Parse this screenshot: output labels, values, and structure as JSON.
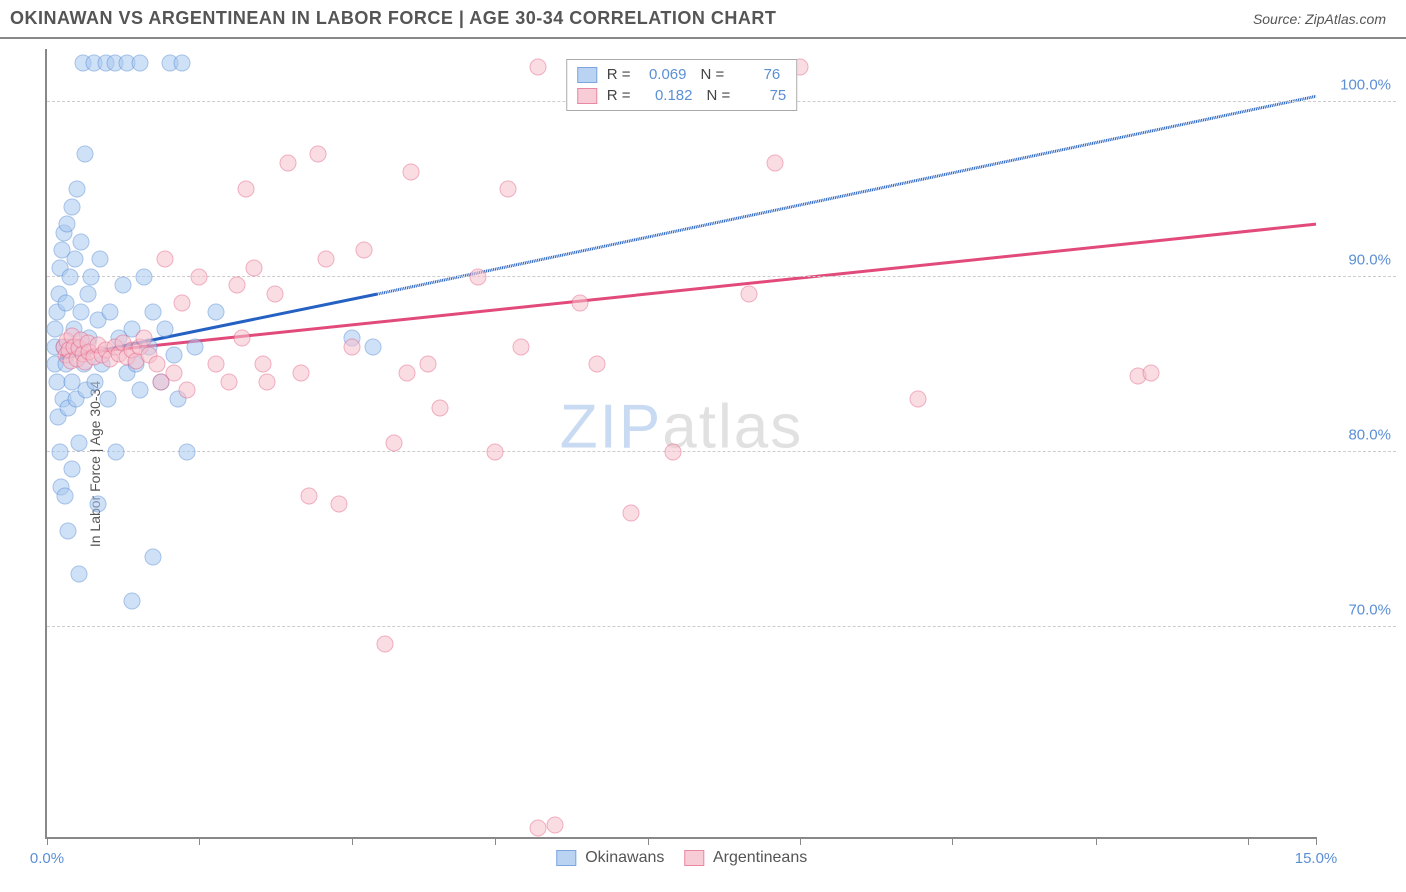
{
  "header": {
    "title": "OKINAWAN VS ARGENTINEAN IN LABOR FORCE | AGE 30-34 CORRELATION CHART",
    "source": "Source: ZipAtlas.com"
  },
  "chart": {
    "type": "scatter",
    "ylabel": "In Labor Force | Age 30-34",
    "watermark": "ZIPatlas",
    "xlim": [
      0,
      15
    ],
    "ylim": [
      58,
      103
    ],
    "y_ticks": [
      70,
      80,
      90,
      100
    ],
    "y_tick_labels": [
      "70.0%",
      "80.0%",
      "90.0%",
      "100.0%"
    ],
    "x_ticks": [
      0,
      1.8,
      3.6,
      5.3,
      7.1,
      8.9,
      10.7,
      12.4,
      14.2,
      15.0
    ],
    "x_tick_labels": {
      "first": "0.0%",
      "last": "15.0%"
    },
    "background_color": "#ffffff",
    "grid_color": "#cccccc",
    "axis_color": "#888888",
    "label_color": "#5b8fd6",
    "series": [
      {
        "name": "Okinawans",
        "marker_fill": "#a9c9f0",
        "marker_stroke": "#5b8fd6",
        "line_color": "#2561c2",
        "R": "0.069",
        "N": "76",
        "trend_solid": {
          "x1": 0.15,
          "y1": 85.3,
          "x2": 3.9,
          "y2": 89.0
        },
        "trend_dashed": {
          "x1": 3.9,
          "y1": 89.0,
          "x2": 15.0,
          "y2": 100.3
        },
        "points": [
          [
            0.1,
            86
          ],
          [
            0.1,
            85
          ],
          [
            0.1,
            87
          ],
          [
            0.12,
            84
          ],
          [
            0.12,
            88
          ],
          [
            0.13,
            82
          ],
          [
            0.14,
            89
          ],
          [
            0.15,
            80
          ],
          [
            0.15,
            90.5
          ],
          [
            0.16,
            78
          ],
          [
            0.18,
            91.5
          ],
          [
            0.19,
            83
          ],
          [
            0.2,
            86
          ],
          [
            0.2,
            92.5
          ],
          [
            0.21,
            77.5
          ],
          [
            0.22,
            85
          ],
          [
            0.22,
            88.5
          ],
          [
            0.24,
            93
          ],
          [
            0.25,
            82.5
          ],
          [
            0.25,
            75.5
          ],
          [
            0.27,
            86
          ],
          [
            0.27,
            90
          ],
          [
            0.29,
            84
          ],
          [
            0.3,
            94
          ],
          [
            0.3,
            79
          ],
          [
            0.32,
            87
          ],
          [
            0.33,
            91
          ],
          [
            0.34,
            83
          ],
          [
            0.35,
            95
          ],
          [
            0.36,
            86
          ],
          [
            0.38,
            80.5
          ],
          [
            0.38,
            73
          ],
          [
            0.4,
            88
          ],
          [
            0.4,
            92
          ],
          [
            0.42,
            102.2
          ],
          [
            0.44,
            85
          ],
          [
            0.45,
            97
          ],
          [
            0.46,
            83.5
          ],
          [
            0.48,
            89
          ],
          [
            0.5,
            86.5
          ],
          [
            0.52,
            90
          ],
          [
            0.55,
            102.2
          ],
          [
            0.57,
            84
          ],
          [
            0.6,
            87.5
          ],
          [
            0.6,
            77
          ],
          [
            0.63,
            91
          ],
          [
            0.65,
            85
          ],
          [
            0.7,
            102.2
          ],
          [
            0.72,
            83
          ],
          [
            0.75,
            88
          ],
          [
            0.8,
            102.2
          ],
          [
            0.82,
            80
          ],
          [
            0.85,
            86.5
          ],
          [
            0.9,
            89.5
          ],
          [
            0.95,
            84.5
          ],
          [
            0.95,
            102.2
          ],
          [
            1.0,
            87
          ],
          [
            1.0,
            71.5
          ],
          [
            1.05,
            85
          ],
          [
            1.1,
            102.2
          ],
          [
            1.1,
            83.5
          ],
          [
            1.15,
            90
          ],
          [
            1.2,
            86
          ],
          [
            1.25,
            88
          ],
          [
            1.25,
            74
          ],
          [
            1.35,
            84
          ],
          [
            1.4,
            87
          ],
          [
            1.45,
            102.2
          ],
          [
            1.5,
            85.5
          ],
          [
            1.55,
            83
          ],
          [
            1.6,
            102.2
          ],
          [
            1.65,
            80
          ],
          [
            1.75,
            86
          ],
          [
            2.0,
            88
          ],
          [
            3.6,
            86.5
          ],
          [
            3.85,
            86
          ]
        ]
      },
      {
        "name": "Argentineans",
        "marker_fill": "#f6c0cd",
        "marker_stroke": "#e56b8c",
        "line_color": "#e14a7a",
        "R": "0.182",
        "N": "75",
        "trend_solid": {
          "x1": 0.15,
          "y1": 85.5,
          "x2": 15.0,
          "y2": 93.0
        },
        "trend_dashed": null,
        "points": [
          [
            0.2,
            86
          ],
          [
            0.22,
            85.5
          ],
          [
            0.24,
            86.3
          ],
          [
            0.26,
            85.8
          ],
          [
            0.28,
            85.2
          ],
          [
            0.3,
            86.6
          ],
          [
            0.32,
            86
          ],
          [
            0.35,
            85.3
          ],
          [
            0.38,
            85.9
          ],
          [
            0.4,
            86.4
          ],
          [
            0.42,
            85.6
          ],
          [
            0.45,
            85.1
          ],
          [
            0.48,
            86.2
          ],
          [
            0.5,
            85.7
          ],
          [
            0.55,
            85.4
          ],
          [
            0.6,
            86.1
          ],
          [
            0.65,
            85.5
          ],
          [
            0.7,
            85.8
          ],
          [
            0.75,
            85.3
          ],
          [
            0.8,
            86
          ],
          [
            0.85,
            85.6
          ],
          [
            0.9,
            86.2
          ],
          [
            0.95,
            85.4
          ],
          [
            1.0,
            85.8
          ],
          [
            1.05,
            85.2
          ],
          [
            1.1,
            86
          ],
          [
            1.15,
            86.5
          ],
          [
            1.2,
            85.5
          ],
          [
            1.3,
            85.0
          ],
          [
            1.35,
            84.0
          ],
          [
            1.4,
            91
          ],
          [
            1.5,
            84.5
          ],
          [
            1.6,
            88.5
          ],
          [
            1.65,
            83.5
          ],
          [
            1.8,
            90
          ],
          [
            2.0,
            85
          ],
          [
            2.15,
            84
          ],
          [
            2.25,
            89.5
          ],
          [
            2.3,
            86.5
          ],
          [
            2.35,
            95
          ],
          [
            2.45,
            90.5
          ],
          [
            2.55,
            85
          ],
          [
            2.6,
            84
          ],
          [
            2.7,
            89
          ],
          [
            2.85,
            96.5
          ],
          [
            3.0,
            84.5
          ],
          [
            3.1,
            77.5
          ],
          [
            3.2,
            97
          ],
          [
            3.3,
            91
          ],
          [
            3.45,
            77
          ],
          [
            3.6,
            86
          ],
          [
            3.75,
            91.5
          ],
          [
            4.0,
            69
          ],
          [
            4.1,
            80.5
          ],
          [
            4.25,
            84.5
          ],
          [
            4.3,
            96
          ],
          [
            4.5,
            85
          ],
          [
            4.65,
            82.5
          ],
          [
            5.1,
            90
          ],
          [
            5.3,
            80
          ],
          [
            5.45,
            95
          ],
          [
            5.6,
            86
          ],
          [
            5.8,
            102
          ],
          [
            5.8,
            58.5
          ],
          [
            6.0,
            58.7
          ],
          [
            6.3,
            88.5
          ],
          [
            6.5,
            85
          ],
          [
            6.9,
            76.5
          ],
          [
            7.4,
            80
          ],
          [
            8.3,
            89
          ],
          [
            8.6,
            96.5
          ],
          [
            8.9,
            102
          ],
          [
            10.3,
            83
          ],
          [
            12.9,
            84.3
          ],
          [
            13.05,
            84.5
          ]
        ]
      }
    ]
  }
}
